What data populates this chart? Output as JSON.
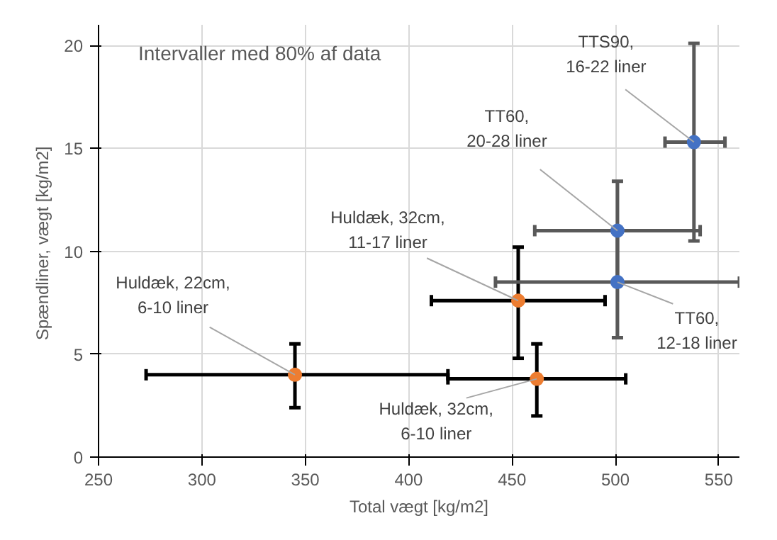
{
  "chart_data": {
    "type": "scatter",
    "title": "Intervaller med 80% af data",
    "xlabel": "Total vægt [kg/m2]",
    "ylabel": "Spændliner, vægt  [kg/m2]",
    "xlim": [
      250,
      560
    ],
    "xticks": [
      250,
      300,
      350,
      400,
      450,
      500,
      550
    ],
    "ylim": [
      0,
      21
    ],
    "yticks": [
      0,
      5,
      10,
      15,
      20
    ],
    "grid": true,
    "marker": "circle",
    "series": [
      {
        "color": "#ed7d31",
        "x": [
          345,
          462,
          453
        ],
        "values": [
          4.0,
          3.8,
          7.6
        ],
        "errors": [
          [
            2.4,
            5.5
          ],
          [
            2.0,
            5.5
          ],
          [
            4.8,
            10.2
          ]
        ],
        "xerrors": [
          [
            273,
            419
          ],
          [
            419,
            505
          ],
          [
            411,
            495
          ]
        ]
      },
      {
        "color": "#4472c4",
        "x": [
          501,
          501,
          538
        ],
        "values": [
          11.0,
          8.5,
          15.3
        ],
        "errors": [
          [
            8.6,
            13.4
          ],
          [
            5.8,
            11.0
          ],
          [
            10.5,
            20.1
          ]
        ],
        "xerrors": [
          [
            461,
            541
          ],
          [
            442,
            560
          ],
          [
            524,
            553
          ]
        ]
      }
    ],
    "annotations": [
      {
        "text": "Huldæk, 22cm,\n6-10 liner",
        "x": 345,
        "y": 4.0
      },
      {
        "text": "Huldæk, 32cm,\n6-10 liner",
        "x": 462,
        "y": 3.8
      },
      {
        "text": "Huldæk, 32cm,\n11-17 liner",
        "x": 453,
        "y": 7.6
      },
      {
        "text": "TT60,\n20-28 liner",
        "x": 501,
        "y": 11.0
      },
      {
        "text": "TT60,\n12-18 liner",
        "x": 501,
        "y": 8.5
      },
      {
        "text": "TTS90,\n16-22 liner",
        "x": 538,
        "y": 15.3
      }
    ]
  }
}
